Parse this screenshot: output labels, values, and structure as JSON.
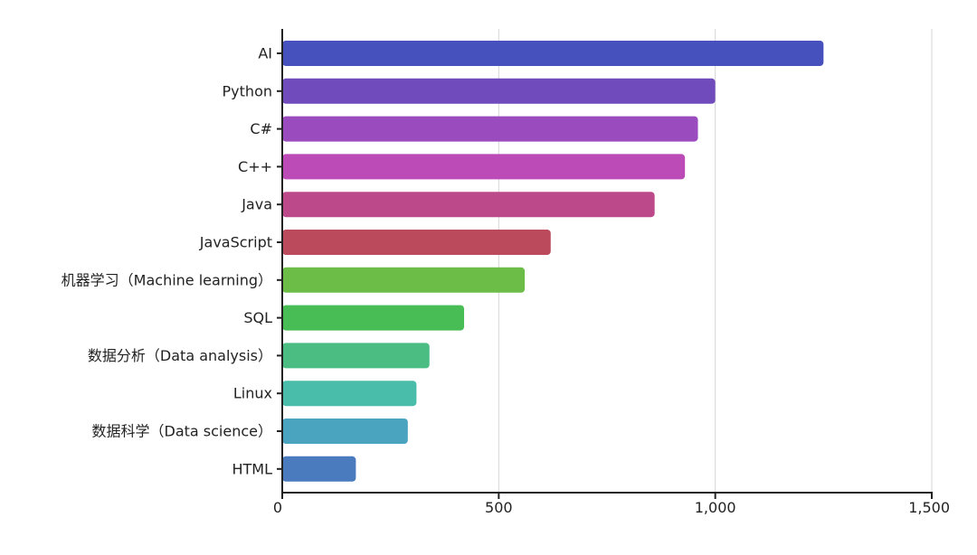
{
  "chart_data": {
    "type": "bar",
    "orientation": "horizontal",
    "title": "",
    "xlabel": "",
    "ylabel": "",
    "categories": [
      "AI",
      "Python",
      "C#",
      "C++",
      "Java",
      "JavaScript",
      "机器学习（Machine learning）",
      "SQL",
      "数据分析（Data analysis）",
      "Linux",
      "数据科学（Data science）",
      "HTML"
    ],
    "values": [
      1250,
      1000,
      960,
      930,
      860,
      620,
      560,
      420,
      340,
      310,
      290,
      170
    ],
    "colors": [
      "#4651bd",
      "#6f4bbb",
      "#9a4bbd",
      "#bc4bb7",
      "#bc4a8a",
      "#bc4a5d",
      "#6bbd48",
      "#49bd55",
      "#4bbd82",
      "#49bdaa",
      "#4aa3bf",
      "#4a7bbf"
    ],
    "xlim": [
      0,
      1500
    ],
    "xticks": [
      0,
      500,
      1000,
      1500
    ],
    "xtick_labels": [
      "0",
      "500",
      "1,000",
      "1,500"
    ],
    "grid": "vertical",
    "legend": "none"
  }
}
